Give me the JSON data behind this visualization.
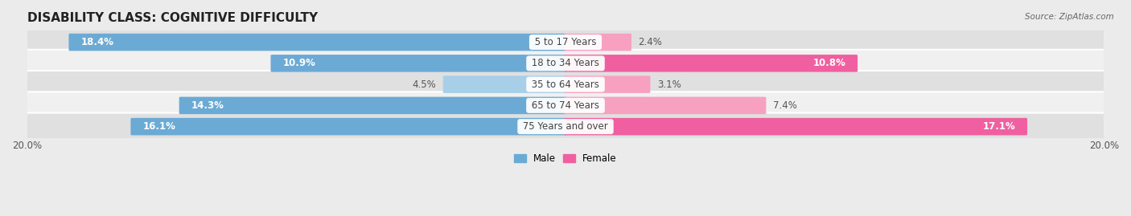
{
  "title": "DISABILITY CLASS: COGNITIVE DIFFICULTY",
  "source": "Source: ZipAtlas.com",
  "categories": [
    "5 to 17 Years",
    "18 to 34 Years",
    "35 to 64 Years",
    "65 to 74 Years",
    "75 Years and over"
  ],
  "male_values": [
    18.4,
    10.9,
    4.5,
    14.3,
    16.1
  ],
  "female_values": [
    2.4,
    10.8,
    3.1,
    7.4,
    17.1
  ],
  "male_color_dark": "#6aaad4",
  "male_color_light": "#a8cfe8",
  "female_color_dark": "#f060a0",
  "female_color_light": "#f8a0c0",
  "male_label": "Male",
  "female_label": "Female",
  "xlim": 20.0,
  "bar_height": 0.72,
  "bg_color": "#ebebeb",
  "row_color_dark": "#e0e0e0",
  "row_color_light": "#f0f0f0",
  "title_fontsize": 11,
  "label_fontsize": 8.5,
  "axis_label_fontsize": 8.5,
  "male_dark_threshold": 8.0,
  "female_dark_threshold": 8.0
}
